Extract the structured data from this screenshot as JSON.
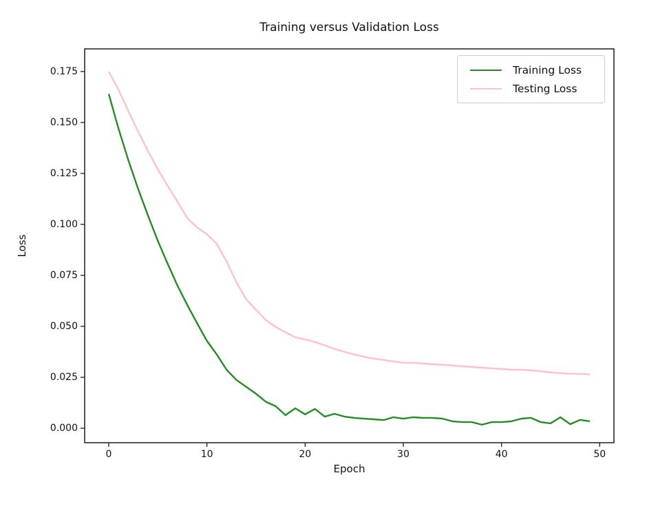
{
  "chart_data": {
    "type": "line",
    "title": "Training versus Validation Loss",
    "xlabel": "Epoch",
    "ylabel": "Loss",
    "x": [
      0,
      1,
      2,
      3,
      4,
      5,
      6,
      7,
      8,
      9,
      10,
      11,
      12,
      13,
      14,
      15,
      16,
      17,
      18,
      19,
      20,
      21,
      22,
      23,
      24,
      25,
      26,
      27,
      28,
      29,
      30,
      31,
      32,
      33,
      34,
      35,
      36,
      37,
      38,
      39,
      40,
      41,
      42,
      43,
      44,
      45,
      46,
      47,
      48,
      49
    ],
    "series": [
      {
        "name": "Training Loss",
        "color": "#228B22",
        "values": [
          0.164,
          0.147,
          0.1315,
          0.1173,
          0.1044,
          0.0919,
          0.0807,
          0.07,
          0.0605,
          0.0515,
          0.0429,
          0.0362,
          0.0287,
          0.0237,
          0.0203,
          0.0169,
          0.013,
          0.0108,
          0.0064,
          0.0098,
          0.0068,
          0.0095,
          0.0057,
          0.0071,
          0.0057,
          0.0051,
          0.0047,
          0.0044,
          0.004,
          0.0054,
          0.0047,
          0.0054,
          0.0051,
          0.0051,
          0.0047,
          0.0034,
          0.003,
          0.003,
          0.0017,
          0.003,
          0.003,
          0.0034,
          0.0047,
          0.0051,
          0.003,
          0.0024,
          0.0054,
          0.002,
          0.0041,
          0.0034
        ]
      },
      {
        "name": "Testing Loss",
        "color": "#FFC0CB",
        "values": [
          0.175,
          0.166,
          0.1556,
          0.1454,
          0.136,
          0.127,
          0.119,
          0.1112,
          0.1031,
          0.0985,
          0.0952,
          0.0905,
          0.0818,
          0.0717,
          0.0632,
          0.0581,
          0.0531,
          0.0497,
          0.047,
          0.0446,
          0.0436,
          0.0423,
          0.0406,
          0.0389,
          0.0375,
          0.0362,
          0.0351,
          0.0341,
          0.0335,
          0.0328,
          0.0321,
          0.0321,
          0.0318,
          0.0314,
          0.0311,
          0.0308,
          0.0304,
          0.0301,
          0.0297,
          0.0294,
          0.0291,
          0.0287,
          0.0287,
          0.0284,
          0.028,
          0.0274,
          0.027,
          0.0267,
          0.0267,
          0.0264
        ]
      }
    ],
    "xlim": [
      -2.45,
      51.45
    ],
    "ylim": [
      -0.0071,
      0.1861
    ],
    "xticks": {
      "values": [
        0,
        10,
        20,
        30,
        40,
        50
      ],
      "labels": [
        "0",
        "10",
        "20",
        "30",
        "40",
        "50"
      ]
    },
    "yticks": {
      "values": [
        0.0,
        0.025,
        0.05,
        0.075,
        0.1,
        0.125,
        0.15,
        0.175
      ],
      "labels": [
        "0.000",
        "0.025",
        "0.050",
        "0.075",
        "0.100",
        "0.125",
        "0.150",
        "0.175"
      ]
    },
    "grid": false,
    "legend": {
      "position": "upper right"
    },
    "colors": {
      "spine": "#1c1c1c",
      "text": "#111111",
      "legend_border": "#cccccc"
    }
  }
}
